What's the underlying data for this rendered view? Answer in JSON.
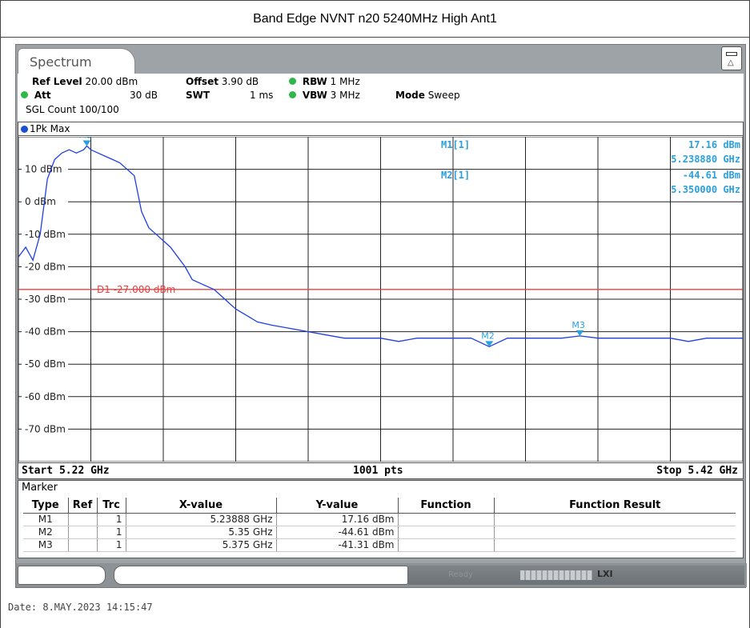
{
  "caption": "Band Edge NVNT n20 5240MHz High Ant1",
  "tab_label": "Spectrum",
  "settings": {
    "ref_level_label": "Ref Level",
    "ref_level_value": "20.00 dBm",
    "offset_label": "Offset",
    "offset_value": "3.90 dB",
    "rbw_label": "RBW",
    "rbw_value": "1 MHz",
    "att_label": "Att",
    "att_value": "30 dB",
    "swt_label": "SWT",
    "swt_value": "1 ms",
    "vbw_label": "VBW",
    "vbw_value": "3 MHz",
    "mode_label": "Mode",
    "mode_value": "Sweep",
    "sgl_count": "SGL Count 100/100"
  },
  "trace_label": "1Pk Max",
  "colors": {
    "trace": "#1f3fe0",
    "marker": "#2aa0e0",
    "threshold": "#e84040",
    "grid": "#222222",
    "settings_dot": "#2eb84a"
  },
  "chart_data": {
    "type": "line",
    "ylim": [
      -80,
      20
    ],
    "xlim": [
      5.22,
      5.42
    ],
    "x_unit": "GHz",
    "y_unit": "dBm",
    "grid": true,
    "y_ticks": [
      {
        "value": 10,
        "label": "10 dBm"
      },
      {
        "value": 0,
        "label": "0 dBm"
      },
      {
        "value": -10,
        "label": "-10 dBm"
      },
      {
        "value": -20,
        "label": "-20 dBm"
      },
      {
        "value": -30,
        "label": "-30 dBm"
      },
      {
        "value": -40,
        "label": "-40 dBm"
      },
      {
        "value": -50,
        "label": "-50 dBm"
      },
      {
        "value": -60,
        "label": "-60 dBm"
      },
      {
        "value": -70,
        "label": "-70 dBm"
      }
    ],
    "x_start_label": "Start 5.22 GHz",
    "x_stop_label": "Stop 5.42 GHz",
    "points_label": "1001 pts",
    "threshold": {
      "value": -27.0,
      "label": "D1  -27.000 dBm"
    },
    "series": [
      {
        "x": [
          5.22,
          5.222,
          5.224,
          5.226,
          5.228,
          5.23,
          5.232,
          5.234,
          5.236,
          5.238,
          5.2389,
          5.24,
          5.242,
          5.244,
          5.246,
          5.248,
          5.25,
          5.252,
          5.254,
          5.256,
          5.258,
          5.26,
          5.262,
          5.264,
          5.266,
          5.268,
          5.27,
          5.272,
          5.274,
          5.276,
          5.278,
          5.28,
          5.283,
          5.286,
          5.29,
          5.295,
          5.3,
          5.305,
          5.31,
          5.315,
          5.32,
          5.325,
          5.33,
          5.335,
          5.34,
          5.345,
          5.35,
          5.355,
          5.36,
          5.365,
          5.37,
          5.375,
          5.38,
          5.385,
          5.39,
          5.395,
          5.4,
          5.405,
          5.41,
          5.415,
          5.42
        ],
        "values": [
          -17,
          -14,
          -18,
          -10,
          7,
          13,
          15,
          16,
          15,
          16,
          17.16,
          16,
          15,
          14,
          13,
          12,
          10,
          8,
          -3,
          -8,
          -10,
          -12,
          -14,
          -17,
          -20,
          -24,
          -25,
          -26,
          -27,
          -29,
          -31,
          -33,
          -35,
          -37,
          -38,
          -39,
          -40,
          -41,
          -42,
          -42,
          -42,
          -43,
          -42,
          -42,
          -42,
          -42,
          -44.61,
          -42,
          -42,
          -42,
          -42,
          -41.31,
          -42,
          -42,
          -42,
          -42,
          -42,
          -43,
          -42,
          -42,
          -42
        ]
      }
    ],
    "markers": [
      {
        "label": "M1",
        "x": 5.23888,
        "y": 17.16
      },
      {
        "label": "M2",
        "x": 5.35,
        "y": -44.61
      },
      {
        "label": "M3",
        "x": 5.375,
        "y": -41.31
      }
    ]
  },
  "readout": {
    "m1_name": "M1[1]",
    "m1_level": "17.16 dBm",
    "m1_freq": "5.238880 GHz",
    "m2_name": "M2[1]",
    "m2_level": "-44.61 dBm",
    "m2_freq": "5.350000 GHz"
  },
  "marker_table": {
    "title": "Marker",
    "headers": [
      "Type",
      "Ref",
      "Trc",
      "X-value",
      "Y-value",
      "Function",
      "Function Result"
    ],
    "rows": [
      [
        "M1",
        "",
        "1",
        "5.23888 GHz",
        "17.16 dBm",
        "",
        ""
      ],
      [
        "M2",
        "",
        "1",
        "5.35 GHz",
        "-44.61 dBm",
        "",
        ""
      ],
      [
        "M3",
        "",
        "1",
        "5.375 GHz",
        "-41.31 dBm",
        "",
        ""
      ]
    ]
  },
  "status": {
    "ready": "Ready",
    "lxi": "LXI"
  },
  "date_line": "Date: 8.MAY.2023  14:15:47"
}
